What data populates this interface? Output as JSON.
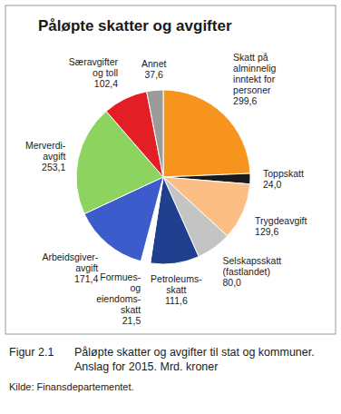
{
  "chart_data": {
    "type": "pie",
    "title": "Påløpte skatter og avgifter",
    "categories": [
      "Skatt på\nalminnelig\ninntekt for\npersoner",
      "Toppskatt",
      "Trygdeavgift",
      "Selskapsskatt\n(fastlandet)",
      "Petroleums-\nskatt",
      "Formues-\nog\neiendoms-\nskatt",
      "Arbeidsgiver-\navgift",
      "Merverdi-\navgift",
      "Særavgifter\nog toll",
      "Annet"
    ],
    "values": [
      299.6,
      24.0,
      129.6,
      80.0,
      111.6,
      21.5,
      171.4,
      253.1,
      102.4,
      37.6
    ],
    "value_labels": [
      "299,6",
      "24,0",
      "129,6",
      "80,0",
      "111,6",
      "21,5",
      "171,4",
      "253,1",
      "102,4",
      "37,6"
    ],
    "colors": [
      "#f7941d",
      "#1a1a1a",
      "#fbbf86",
      "#c4c4c4",
      "#213f8f",
      "#ffffff",
      "#3d5ccc",
      "#8dd35f",
      "#e31e24",
      "#9b9b9b"
    ],
    "data_labels": true,
    "figure_label": "Figur 2.1",
    "caption": "Påløpte skatter og avgifter til stat og kommuner. Anslag for 2015. Mrd. kroner",
    "source": "Kilde: Finansdepartementet."
  }
}
